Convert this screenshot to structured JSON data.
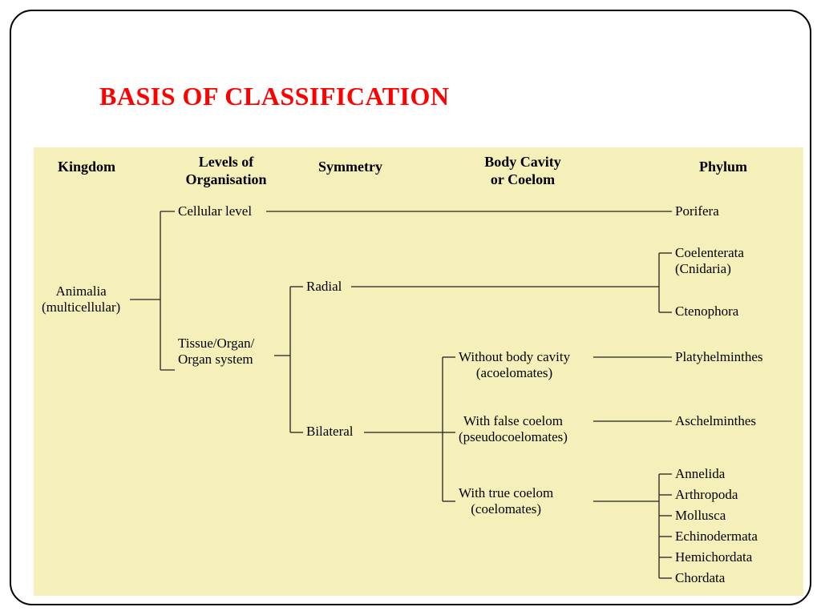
{
  "title": "BASIS OF CLASSIFICATION",
  "title_color": "#ff0000",
  "title_fontsize": 32,
  "diagram_bg": "#f5f0b9",
  "headers": {
    "kingdom": "Kingdom",
    "levels": "Levels of\nOrganisation",
    "symmetry": "Symmetry",
    "cavity": "Body Cavity\nor Coelom",
    "phylum": "Phylum"
  },
  "nodes": {
    "animalia": "Animalia\n(multicellular)",
    "cellular": "Cellular level",
    "tissue": "Tissue/Organ/\nOrgan system",
    "radial": "Radial",
    "bilateral": "Bilateral",
    "without": "Without body cavity\n(acoelomates)",
    "false": "With false coelom\n(pseudocoelomates)",
    "true": "With true coelom\n(coelomates)",
    "porifera": "Porifera",
    "coelenterata": "Coelenterata\n(Cnidaria)",
    "ctenophora": "Ctenophora",
    "platy": "Platyhelminthes",
    "aschel": "Aschelminthes",
    "annelida": "Annelida",
    "arthropoda": "Arthropoda",
    "mollusca": "Mollusca",
    "echino": "Echinodermata",
    "hemi": "Hemichordata",
    "chordata": "Chordata"
  }
}
